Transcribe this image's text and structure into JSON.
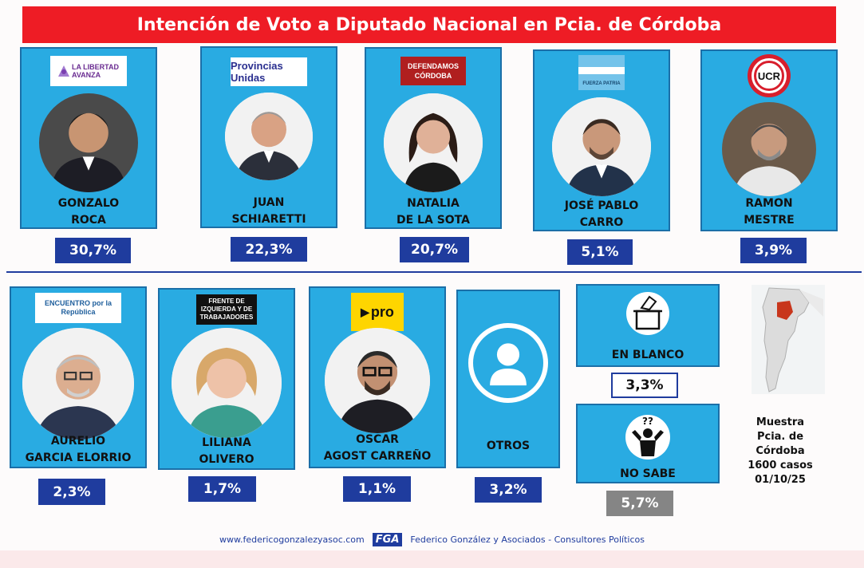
{
  "title": "Intención de Voto a Diputado Nacional en Pcia. de Córdoba",
  "chart_data": {
    "type": "table",
    "title": "Intención de Voto a Diputado Nacional en Pcia. de Córdoba",
    "unit": "%",
    "categories": [
      "GONZALO ROCA",
      "JUAN SCHIARETTI",
      "NATALIA DE LA SOTA",
      "JOSÉ PABLO CARRO",
      "RAMON MESTRE",
      "AURELIO GARCIA ELORRIO",
      "LILIANA OLIVERO",
      "OSCAR AGOST CARREÑO",
      "OTROS",
      "EN BLANCO",
      "NO SABE"
    ],
    "values": [
      30.7,
      22.3,
      20.7,
      5.1,
      3.9,
      2.3,
      1.7,
      1.1,
      3.2,
      3.3,
      5.7
    ]
  },
  "candidates": [
    {
      "name1": "GONZALO",
      "name2": "ROCA",
      "pct": "30,7%",
      "logo": "LA LIBERTAD AVANZA",
      "logo_icon": "lla-logo"
    },
    {
      "name1": "JUAN",
      "name2": "SCHIARETTI",
      "pct": "22,3%",
      "logo": "Provincias Unidas",
      "logo_icon": "provincias-unidas-logo"
    },
    {
      "name1": "NATALIA",
      "name2": "DE LA SOTA",
      "pct": "20,7%",
      "logo": "DEFENDAMOS CÓRDOBA",
      "logo_icon": "defendamos-cordoba-logo"
    },
    {
      "name1": "JOSÉ PABLO",
      "name2": "CARRO",
      "pct": "5,1%",
      "logo": "FUERZA PATRIA",
      "logo_icon": "fuerza-patria-logo"
    },
    {
      "name1": "RAMON",
      "name2": "MESTRE",
      "pct": "3,9%",
      "logo": "UCR",
      "logo_icon": "ucr-logo"
    },
    {
      "name1": "AURELIO",
      "name2": "GARCIA ELORRIO",
      "pct": "2,3%",
      "logo": "ENCUENTRO por la República",
      "logo_icon": "encuentro-logo"
    },
    {
      "name1": "LILIANA",
      "name2": "OLIVERO",
      "pct": "1,7%",
      "logo": "FRENTE DE IZQUIERDA Y DE TRABAJADORES",
      "logo_icon": "fit-logo"
    },
    {
      "name1": "OSCAR",
      "name2": "AGOST CARREÑO",
      "pct": "1,1%",
      "logo": "pro",
      "logo_icon": "pro-logo"
    }
  ],
  "otros": {
    "label": "OTROS",
    "pct": "3,2%",
    "icon": "person-icon"
  },
  "blanco": {
    "label": "EN BLANCO",
    "pct": "3,3%",
    "icon": "ballot-box-icon"
  },
  "nosabe": {
    "label": "NO SABE",
    "pct": "5,7%",
    "icon": "shrug-person-icon",
    "mark": "??"
  },
  "sample": {
    "l1": "Muestra",
    "l2": "Pcia. de Córdoba",
    "l3": "1600 casos",
    "l4": "01/10/25"
  },
  "footer": {
    "url": "www.federicogonzalezyasoc.com",
    "brand": "FGA",
    "firm": "Federico González y Asociados - Consultores Políticos"
  },
  "colors": {
    "title_bg": "#ee1c25",
    "card_bg": "#29abe2",
    "pct_bg": "#1f3c9e",
    "gray": "#858585"
  }
}
